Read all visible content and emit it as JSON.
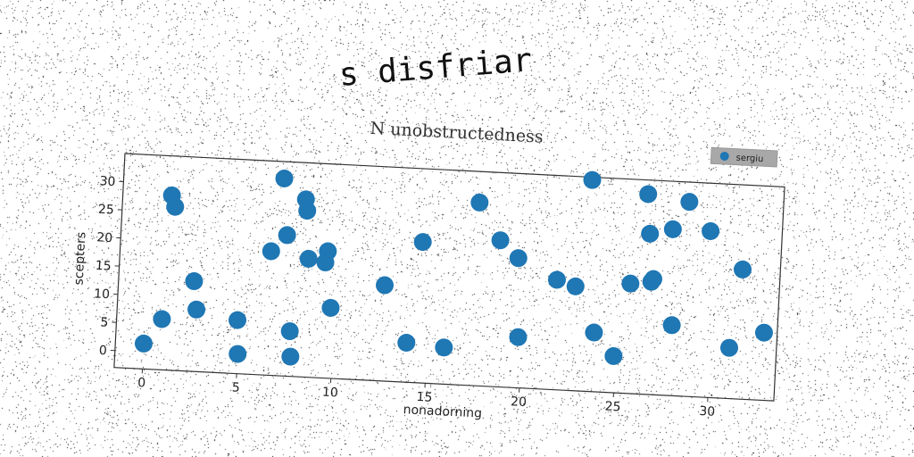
{
  "suptitle": "s disfriar",
  "chart_data": {
    "type": "scatter",
    "title": "N unobstructedness",
    "xlabel": "nonadorning",
    "ylabel": "scepters",
    "xlim": [
      -1.5,
      33.5
    ],
    "ylim": [
      -3,
      35
    ],
    "xticks": [
      "0",
      "5",
      "10",
      "15",
      "20",
      "25",
      "30"
    ],
    "yticks": [
      "0",
      "5",
      "10",
      "15",
      "20",
      "25",
      "30"
    ],
    "grid": false,
    "legend_position": "top-right",
    "series": [
      {
        "name": "sergiu",
        "color": "#1f77b4",
        "points": [
          [
            0.0,
            1.5
          ],
          [
            1.1,
            28.0
          ],
          [
            1.3,
            26.0
          ],
          [
            0.9,
            6.0
          ],
          [
            2.5,
            13.0
          ],
          [
            2.7,
            8.0
          ],
          [
            4.9,
            6.5
          ],
          [
            5.0,
            0.5
          ],
          [
            6.5,
            19.0
          ],
          [
            7.0,
            32.0
          ],
          [
            7.3,
            22.0
          ],
          [
            7.7,
            5.0
          ],
          [
            7.8,
            0.5
          ],
          [
            8.2,
            28.5
          ],
          [
            8.3,
            26.5
          ],
          [
            8.5,
            18.0
          ],
          [
            9.4,
            17.5
          ],
          [
            9.5,
            19.5
          ],
          [
            9.8,
            9.5
          ],
          [
            12.6,
            14.0
          ],
          [
            13.9,
            4.0
          ],
          [
            14.5,
            22.0
          ],
          [
            15.9,
            3.5
          ],
          [
            17.4,
            29.5
          ],
          [
            18.6,
            23.0
          ],
          [
            19.6,
            20.0
          ],
          [
            19.8,
            6.0
          ],
          [
            21.7,
            16.5
          ],
          [
            22.7,
            15.5
          ],
          [
            23.3,
            34.5
          ],
          [
            23.8,
            7.5
          ],
          [
            24.9,
            3.5
          ],
          [
            25.6,
            16.5
          ],
          [
            26.3,
            32.5
          ],
          [
            26.5,
            25.5
          ],
          [
            26.7,
            17.0
          ],
          [
            26.8,
            17.5
          ],
          [
            27.7,
            26.5
          ],
          [
            27.9,
            9.5
          ],
          [
            28.5,
            31.5
          ],
          [
            29.7,
            26.5
          ],
          [
            31.0,
            6.0
          ],
          [
            31.5,
            20.0
          ],
          [
            32.8,
            9.0
          ]
        ]
      }
    ]
  }
}
